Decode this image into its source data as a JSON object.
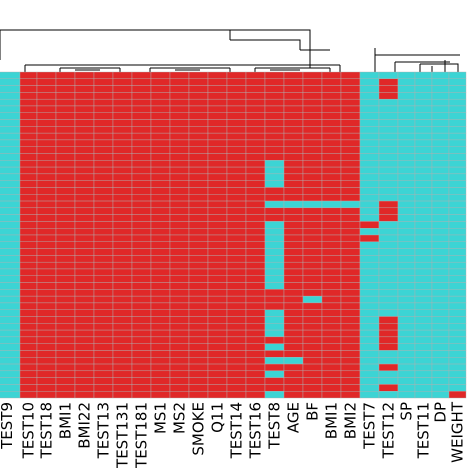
{
  "chart_data": {
    "type": "heatmap",
    "title": "",
    "xlabel": "",
    "ylabel": "",
    "colors": {
      "low": "#3cd4d4",
      "high": "#e02828",
      "grid": "#b0b0b0"
    },
    "columns": [
      "TEST9",
      "TEST10",
      "TEST18",
      "BMI1",
      "BMI22",
      "TEST13",
      "TEST131",
      "TEST181",
      "MS1",
      "MS2",
      "SMOKE",
      "Q11",
      "TEST14",
      "TEST16",
      "TEST8",
      "AGE",
      "BF",
      "BMI1",
      "BMI2",
      "TEST7",
      "TEST12",
      "SP",
      "TEST11",
      "DP",
      "WEIGHT"
    ],
    "row_count": 48,
    "column_default": [
      0,
      1,
      1,
      1,
      1,
      1,
      1,
      1,
      1,
      1,
      1,
      1,
      1,
      1,
      1,
      1,
      1,
      1,
      1,
      0,
      0,
      0,
      0,
      0,
      0
    ],
    "exceptions": [
      {
        "column": "TEST8",
        "rows": [
          13,
          14,
          15,
          16,
          19,
          22,
          23,
          24,
          25,
          26,
          27,
          28,
          29,
          30,
          31,
          35,
          36,
          37,
          38,
          40,
          42,
          44,
          47
        ]
      },
      {
        "column": "AGE",
        "rows": [
          19,
          42
        ]
      },
      {
        "column": "BF",
        "rows": [
          19,
          33
        ]
      },
      {
        "column": "BMI1",
        "rows": [
          19
        ]
      },
      {
        "column": "BMI2",
        "rows": [
          19
        ]
      },
      {
        "column": "TEST7",
        "rows": [
          22,
          24
        ]
      },
      {
        "column": "TEST12",
        "rows": [
          1,
          2,
          3,
          19,
          20,
          21,
          36,
          37,
          38,
          39,
          40,
          43,
          46
        ]
      },
      {
        "column": "WEIGHT",
        "rows": [
          47
        ]
      }
    ],
    "dendrogram": "column clustering shown above heatmap"
  }
}
